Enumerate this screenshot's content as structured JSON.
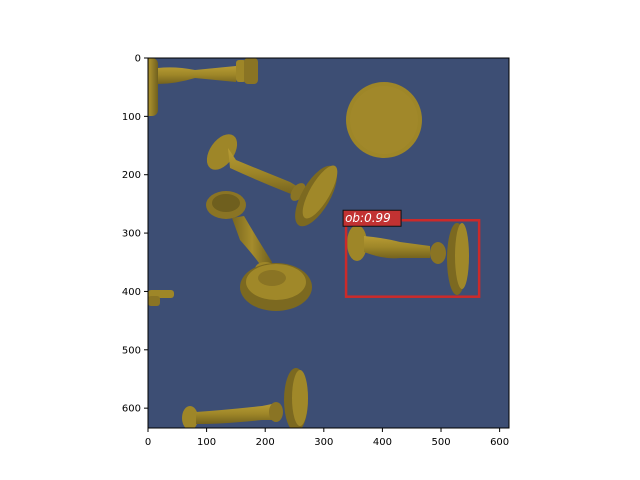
{
  "figure": {
    "image_description_colors": {
      "background": "#3d4e74",
      "object_fill": "#9e8628",
      "object_shadow": "#6f5f1e",
      "object_highlight": "#b89c34",
      "box_color": "#cc2a2a",
      "label_bg": "#c23232"
    },
    "x_axis": {
      "range": [
        0,
        616
      ],
      "ticks": [
        0,
        100,
        200,
        300,
        400,
        500,
        600
      ],
      "tick_labels": [
        "0",
        "100",
        "200",
        "300",
        "400",
        "500",
        "600"
      ]
    },
    "y_axis": {
      "range": [
        0,
        634
      ],
      "ticks": [
        0,
        100,
        200,
        300,
        400,
        500,
        600
      ],
      "tick_labels": [
        "0",
        "100",
        "200",
        "300",
        "400",
        "500",
        "600"
      ]
    },
    "detections": [
      {
        "label": "ob:0.99",
        "x0": 338,
        "y0": 278,
        "x1": 565,
        "y1": 409
      }
    ]
  }
}
